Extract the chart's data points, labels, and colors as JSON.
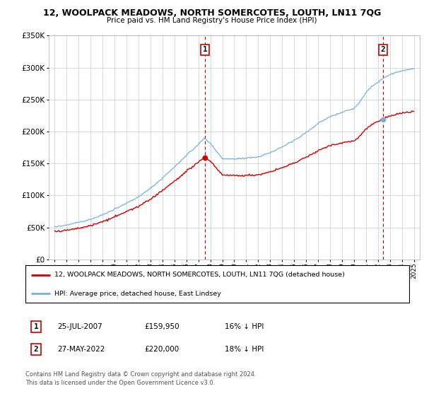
{
  "title": "12, WOOLPACK MEADOWS, NORTH SOMERCOTES, LOUTH, LN11 7QG",
  "subtitle": "Price paid vs. HM Land Registry's House Price Index (HPI)",
  "legend_line1": "12, WOOLPACK MEADOWS, NORTH SOMERCOTES, LOUTH, LN11 7QG (detached house)",
  "legend_line2": "HPI: Average price, detached house, East Lindsey",
  "sale1_date": "25-JUL-2007",
  "sale1_price": "£159,950",
  "sale1_hpi": "16% ↓ HPI",
  "sale2_date": "27-MAY-2022",
  "sale2_price": "£220,000",
  "sale2_hpi": "18% ↓ HPI",
  "footer": "Contains HM Land Registry data © Crown copyright and database right 2024.\nThis data is licensed under the Open Government Licence v3.0.",
  "sale1_x": 2007.56,
  "sale1_y": 159950,
  "sale2_x": 2022.41,
  "sale2_y": 220000,
  "red_line_color": "#cc0000",
  "blue_line_color": "#7ab0d4",
  "background_color": "#ffffff",
  "grid_color": "#cccccc",
  "ylim": [
    0,
    350000
  ],
  "xlim": [
    1994.5,
    2025.5
  ],
  "hpi_nodes_x": [
    1995,
    1996,
    1997,
    1998,
    1999,
    2000,
    2001,
    2002,
    2003,
    2004,
    2005,
    2006,
    2007,
    2007.5,
    2008,
    2008.5,
    2009,
    2010,
    2011,
    2012,
    2013,
    2014,
    2015,
    2016,
    2017,
    2018,
    2019,
    2020,
    2020.5,
    2021,
    2021.5,
    2022,
    2022.5,
    2023,
    2023.5,
    2024,
    2025
  ],
  "hpi_nodes_y": [
    51000,
    54000,
    58000,
    63000,
    70000,
    79000,
    88000,
    98000,
    112000,
    128000,
    145000,
    163000,
    180000,
    190000,
    182000,
    170000,
    158000,
    158000,
    160000,
    162000,
    168000,
    178000,
    188000,
    200000,
    215000,
    225000,
    232000,
    238000,
    248000,
    262000,
    272000,
    278000,
    285000,
    290000,
    293000,
    295000,
    298000
  ]
}
